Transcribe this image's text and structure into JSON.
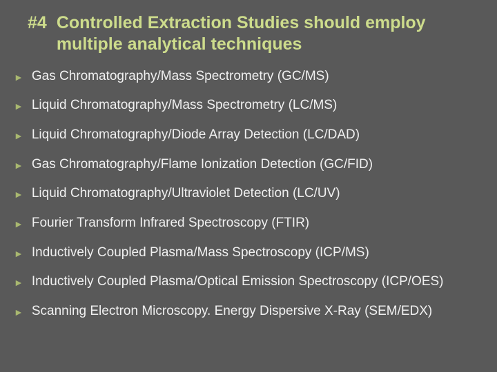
{
  "slide": {
    "background_color": "#595959",
    "title_color": "#cddc8c",
    "text_color": "#f0f0f0",
    "bullet_color": "#a9b870",
    "title_number": "#4",
    "title_text": "Controlled Extraction Studies should employ multiple analytical techniques",
    "title_fontsize": 25,
    "item_fontsize": 19,
    "bullet_glyph": "►",
    "items": [
      "Gas Chromatography/Mass Spectrometry (GC/MS)",
      "Liquid Chromatography/Mass Spectrometry (LC/MS)",
      "Liquid Chromatography/Diode Array Detection (LC/DAD)",
      "Gas Chromatography/Flame Ionization Detection (GC/FID)",
      "Liquid Chromatography/Ultraviolet Detection (LC/UV)",
      "Fourier  Transform Infrared Spectroscopy (FTIR)",
      "Inductively Coupled Plasma/Mass Spectroscopy (ICP/MS)",
      "Inductively Coupled Plasma/Optical Emission Spectroscopy (ICP/OES)",
      "Scanning Electron Microscopy. Energy Dispersive X-Ray (SEM/EDX)"
    ]
  }
}
